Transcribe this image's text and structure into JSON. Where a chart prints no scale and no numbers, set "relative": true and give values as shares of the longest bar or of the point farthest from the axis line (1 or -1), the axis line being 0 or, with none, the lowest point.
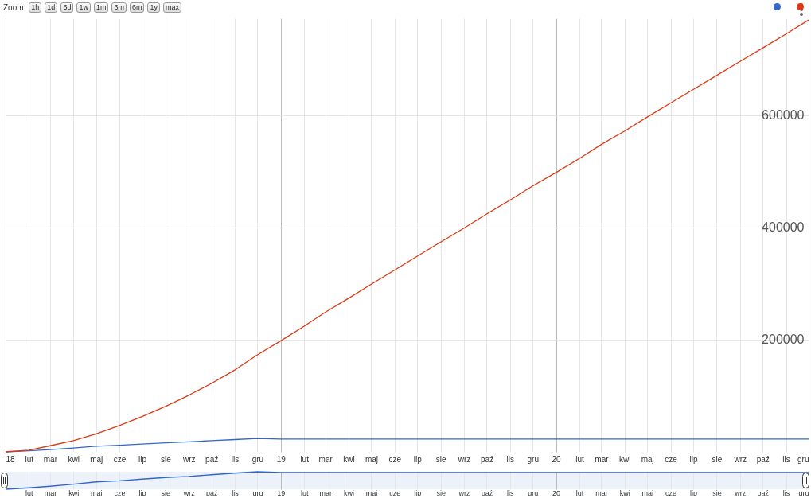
{
  "chart_data": [
    {
      "type": "line",
      "annotations": [
        "Zoom:",
        "1h",
        "1d",
        "5d",
        "1w",
        "1m",
        "3m",
        "6m",
        "1y",
        "max"
      ],
      "x": [
        "2018-01",
        "2018-02",
        "2018-03",
        "2018-04",
        "2018-05",
        "2018-06",
        "2018-07",
        "2018-08",
        "2018-09",
        "2018-10",
        "2018-11",
        "2018-12",
        "2019-01",
        "2019-02",
        "2019-03",
        "2019-04",
        "2019-05",
        "2019-06",
        "2019-07",
        "2019-08",
        "2019-09",
        "2019-10",
        "2019-11",
        "2019-12",
        "2020-01",
        "2020-02",
        "2020-03",
        "2020-04",
        "2020-05",
        "2020-06",
        "2020-07",
        "2020-08",
        "2020-09",
        "2020-10",
        "2020-11",
        "2020-12"
      ],
      "series": [
        {
          "color": "#3366cc",
          "values": [
            0,
            2000,
            4000,
            7000,
            10000,
            12000,
            14000,
            16000,
            18000,
            20000,
            22000,
            24000,
            23000,
            23000,
            23000,
            23000,
            23000,
            23000,
            23000,
            23000,
            23000,
            23000,
            23000,
            23000,
            23000,
            23000,
            23000,
            23000,
            23000,
            23000,
            23000,
            23000,
            23000,
            23000,
            23000,
            23000
          ]
        },
        {
          "color": "#dc3912",
          "values": [
            0,
            3000,
            11000,
            20000,
            32000,
            47000,
            63000,
            81000,
            101000,
            122000,
            146000,
            173000,
            198000,
            224000,
            249000,
            274000,
            299000,
            324000,
            349000,
            374000,
            399000,
            424000,
            449000,
            474000,
            498000,
            523000,
            548000,
            572000,
            597000,
            622000,
            646000,
            671000,
            696000,
            720000,
            745000,
            770000
          ]
        }
      ],
      "xlim": [
        "2018-01",
        "2020-12"
      ],
      "xticks": [
        {
          "value": "2018-01",
          "label": "18"
        },
        {
          "value": "2018-02",
          "label": "lut"
        },
        {
          "value": "2018-03",
          "label": "mar"
        },
        {
          "value": "2018-04",
          "label": "kwi"
        },
        {
          "value": "2018-05",
          "label": "maj"
        },
        {
          "value": "2018-06",
          "label": "cze"
        },
        {
          "value": "2018-07",
          "label": "lip"
        },
        {
          "value": "2018-08",
          "label": "sie"
        },
        {
          "value": "2018-09",
          "label": "wrz"
        },
        {
          "value": "2018-10",
          "label": "paź"
        },
        {
          "value": "2018-11",
          "label": "lis"
        },
        {
          "value": "2018-12",
          "label": "gru"
        },
        {
          "value": "2019-01",
          "label": "19"
        },
        {
          "value": "2019-02",
          "label": "lut"
        },
        {
          "value": "2019-03",
          "label": "mar"
        },
        {
          "value": "2019-04",
          "label": "kwi"
        },
        {
          "value": "2019-05",
          "label": "maj"
        },
        {
          "value": "2019-06",
          "label": "cze"
        },
        {
          "value": "2019-07",
          "label": "lip"
        },
        {
          "value": "2019-08",
          "label": "sie"
        },
        {
          "value": "2019-09",
          "label": "wrz"
        },
        {
          "value": "2019-10",
          "label": "paź"
        },
        {
          "value": "2019-11",
          "label": "lis"
        },
        {
          "value": "2019-12",
          "label": "gru"
        },
        {
          "value": "2020-01",
          "label": "20"
        },
        {
          "value": "2020-02",
          "label": "lut"
        },
        {
          "value": "2020-03",
          "label": "mar"
        },
        {
          "value": "2020-04",
          "label": "kwi"
        },
        {
          "value": "2020-05",
          "label": "maj"
        },
        {
          "value": "2020-06",
          "label": "cze"
        },
        {
          "value": "2020-07",
          "label": "lip"
        },
        {
          "value": "2020-08",
          "label": "sie"
        },
        {
          "value": "2020-09",
          "label": "wrz"
        },
        {
          "value": "2020-10",
          "label": "paź"
        },
        {
          "value": "2020-11",
          "label": "lis"
        },
        {
          "value": "2020-12",
          "label": "gru"
        }
      ],
      "ylim": [
        0,
        773000
      ],
      "yticks": [
        200000,
        400000,
        600000
      ],
      "grid": true
    },
    {
      "type": "line",
      "relative": true,
      "tick_labels": "x",
      "x": [
        "2018-01",
        "2018-02",
        "2018-03",
        "2018-04",
        "2018-05",
        "2018-06",
        "2018-07",
        "2018-08",
        "2018-09",
        "2018-10",
        "2018-11",
        "2018-12",
        "2019-01",
        "2019-02",
        "2019-03",
        "2019-04",
        "2019-05",
        "2019-06",
        "2019-07",
        "2019-08",
        "2019-09",
        "2019-10",
        "2019-11",
        "2019-12",
        "2020-01",
        "2020-02",
        "2020-03",
        "2020-04",
        "2020-05",
        "2020-06",
        "2020-07",
        "2020-08",
        "2020-09",
        "2020-10",
        "2020-11",
        "2020-12"
      ],
      "series": [
        {
          "color": "#3366cc",
          "values": [
            0,
            0.08,
            0.17,
            0.29,
            0.42,
            0.48,
            0.58,
            0.67,
            0.73,
            0.83,
            0.92,
            1,
            0.96,
            0.96,
            0.96,
            0.96,
            0.96,
            0.96,
            0.96,
            0.96,
            0.96,
            0.96,
            0.96,
            0.96,
            0.96,
            0.96,
            0.96,
            0.96,
            0.96,
            0.96,
            0.96,
            0.96,
            0.96,
            0.96,
            0.96,
            0.96
          ]
        }
      ],
      "xlim": [
        "2018-01",
        "2020-12"
      ],
      "xticks": [
        {
          "value": "2018-02",
          "label": "lut"
        },
        {
          "value": "2018-03",
          "label": "mar"
        },
        {
          "value": "2018-04",
          "label": "kwi"
        },
        {
          "value": "2018-05",
          "label": "maj"
        },
        {
          "value": "2018-06",
          "label": "cze"
        },
        {
          "value": "2018-07",
          "label": "lip"
        },
        {
          "value": "2018-08",
          "label": "sie"
        },
        {
          "value": "2018-09",
          "label": "wrz"
        },
        {
          "value": "2018-10",
          "label": "paź"
        },
        {
          "value": "2018-11",
          "label": "lis"
        },
        {
          "value": "2018-12",
          "label": "gru"
        },
        {
          "value": "2019-01",
          "label": "19"
        },
        {
          "value": "2019-02",
          "label": "lut"
        },
        {
          "value": "2019-03",
          "label": "mar"
        },
        {
          "value": "2019-04",
          "label": "kwi"
        },
        {
          "value": "2019-05",
          "label": "maj"
        },
        {
          "value": "2019-06",
          "label": "cze"
        },
        {
          "value": "2019-07",
          "label": "lip"
        },
        {
          "value": "2019-08",
          "label": "sie"
        },
        {
          "value": "2019-09",
          "label": "wrz"
        },
        {
          "value": "2019-10",
          "label": "paź"
        },
        {
          "value": "2019-11",
          "label": "lis"
        },
        {
          "value": "2019-12",
          "label": "gru"
        },
        {
          "value": "2020-01",
          "label": "20"
        },
        {
          "value": "2020-02",
          "label": "lut"
        },
        {
          "value": "2020-03",
          "label": "mar"
        },
        {
          "value": "2020-04",
          "label": "kwi"
        },
        {
          "value": "2020-05",
          "label": "maj"
        },
        {
          "value": "2020-06",
          "label": "cze"
        },
        {
          "value": "2020-07",
          "label": "lip"
        },
        {
          "value": "2020-08",
          "label": "sie"
        },
        {
          "value": "2020-09",
          "label": "wrz"
        },
        {
          "value": "2020-10",
          "label": "paź"
        },
        {
          "value": "2020-11",
          "label": "lis"
        },
        {
          "value": "2020-12",
          "label": "gru"
        }
      ],
      "grid": true
    }
  ]
}
